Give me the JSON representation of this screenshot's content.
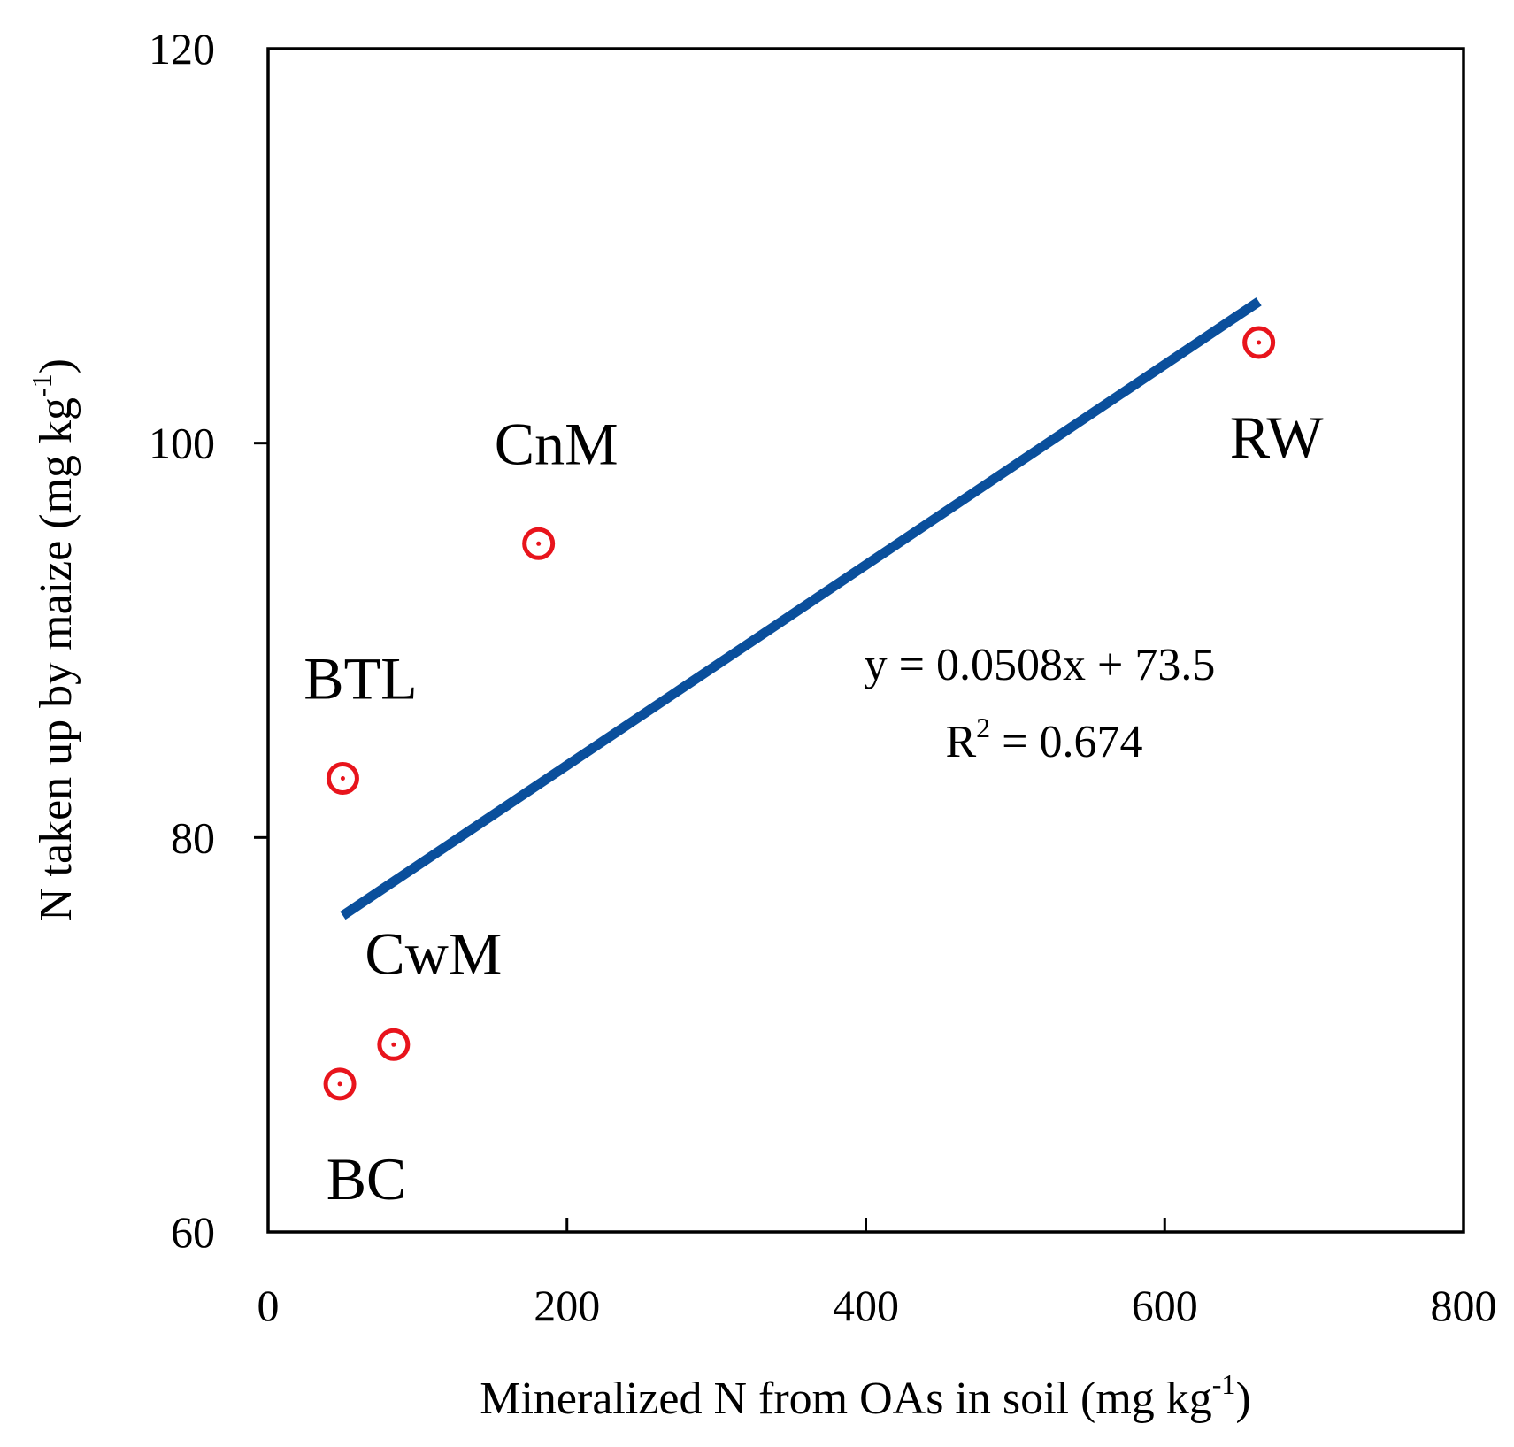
{
  "chart_data": {
    "type": "scatter",
    "xlabel": "Mineralized N from OAs in soil (mg kg",
    "xlabel_sup": "-1",
    "xlabel_end": ")",
    "ylabel": "N taken up by maize (mg kg",
    "ylabel_sup": "-1",
    "ylabel_end": ")",
    "xlim": [
      0,
      800
    ],
    "ylim": [
      60,
      120
    ],
    "xticks": [
      "0",
      "200",
      "400",
      "600",
      "800"
    ],
    "yticks": [
      "60",
      "80",
      "100",
      "120"
    ],
    "grid": false,
    "marker_color": "#e8141c",
    "trend_color": "#0a4f9c",
    "points": [
      {
        "label": "RW",
        "x": 663,
        "y": 105.1
      },
      {
        "label": "CnM",
        "x": 181,
        "y": 94.9
      },
      {
        "label": "BTL",
        "x": 50,
        "y": 83
      },
      {
        "label": "CwM",
        "x": 84,
        "y": 69.5
      },
      {
        "label": "BC",
        "x": 48,
        "y": 67.5
      }
    ],
    "trendline": {
      "x_start": 50,
      "x_end": 663,
      "slope": 0.0508,
      "intercept": 73.5
    },
    "equation": "y = 0.0508x + 73.5",
    "r2_label": "R",
    "r2_sup": "2",
    "r2_value": " = 0.674"
  }
}
